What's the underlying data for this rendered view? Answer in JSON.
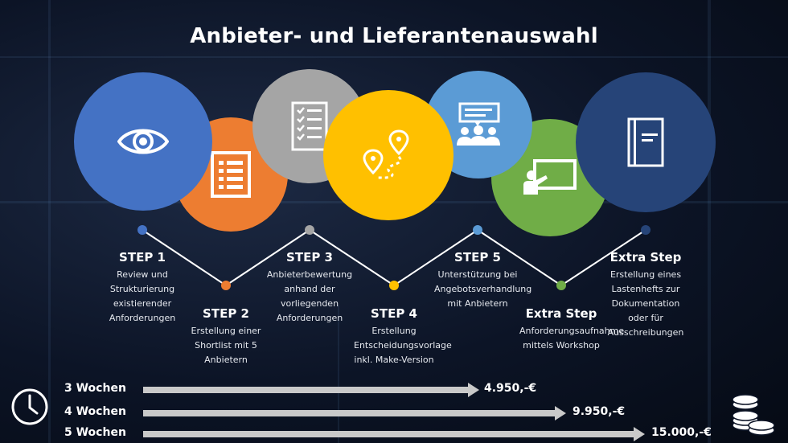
{
  "title": "Anbieter- und Lieferantenauswahl",
  "colors": {
    "blue": "#4472c4",
    "orange": "#ed7d31",
    "gray": "#a5a5a5",
    "yellow": "#ffc000",
    "light_blue": "#5b9bd5",
    "green": "#70ad47",
    "dark_blue": "#264478",
    "line": "#ffffff",
    "arrow": "#c9c9c9"
  },
  "steps": [
    {
      "head": "STEP 1",
      "desc": "Review und Strukturierung existierender Anforderungen",
      "color": "blue",
      "icon": "eye-icon"
    },
    {
      "head": "STEP 2",
      "desc": "Erstellung einer Shortlist mit 5 Anbietern",
      "color": "orange",
      "icon": "checklist-icon"
    },
    {
      "head": "STEP 3",
      "desc": "Anbieterbewertung anhand der vorliegenden Anforderungen",
      "color": "gray",
      "icon": "checkbox-list-icon"
    },
    {
      "head": "STEP 4",
      "desc": "Erstellung Entscheidungsvorlage inkl. Make-Version",
      "color": "yellow",
      "icon": "route-pins-icon"
    },
    {
      "head": "STEP 5",
      "desc": "Unterstützung bei Angebotsverhandlung mit Anbietern",
      "color": "light_blue",
      "icon": "meeting-icon"
    },
    {
      "head": "Extra Step",
      "desc": "Anforderungsaufnahme mittels Workshop",
      "color": "green",
      "icon": "presentation-icon"
    },
    {
      "head": "Extra Step",
      "desc": "Erstellung eines Lastenhefts zur Dokumentation oder für Ausschreibungen",
      "color": "dark_blue",
      "icon": "document-icon"
    }
  ],
  "timeline": [
    {
      "label": "3 Wochen",
      "price": "4.950,-€"
    },
    {
      "label": "4 Wochen",
      "price": "9.950,-€"
    },
    {
      "label": "5 Wochen",
      "price": "15.000,-€"
    }
  ],
  "icons": {
    "clock": "clock-icon",
    "coins": "coins-icon"
  }
}
